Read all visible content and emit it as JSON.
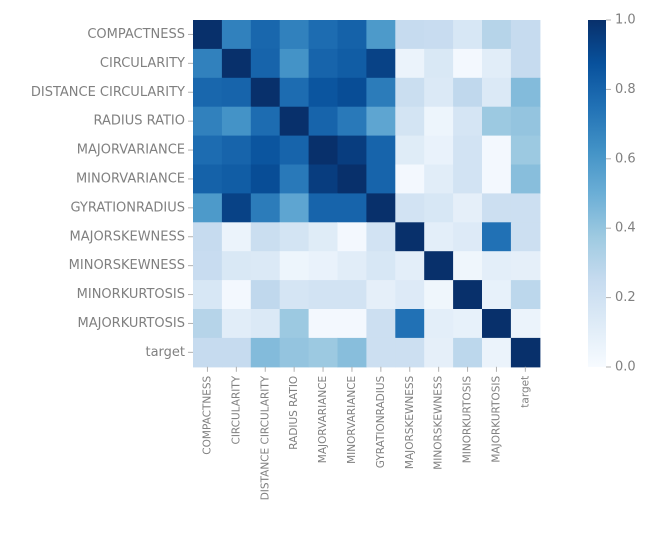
{
  "chart_data": {
    "type": "heatmap",
    "title": "",
    "xlabel": "",
    "ylabel": "",
    "rows": [
      "COMPACTNESS",
      "CIRCULARITY",
      "DISTANCE CIRCULARITY",
      "RADIUS RATIO",
      "MAJORVARIANCE",
      "MINORVARIANCE",
      "GYRATIONRADIUS",
      "MAJORSKEWNESS",
      "MINORSKEWNESS",
      "MINORKURTOSIS",
      "MAJORKURTOSIS",
      "target"
    ],
    "cols": [
      "COMPACTNESS",
      "CIRCULARITY",
      "DISTANCE CIRCULARITY",
      "RADIUS RATIO",
      "MAJORVARIANCE",
      "MINORVARIANCE",
      "GYRATIONRADIUS",
      "MAJORSKEWNESS",
      "MINORSKEWNESS",
      "MINORKURTOSIS",
      "MAJORKURTOSIS",
      "target"
    ],
    "values": [
      [
        1.0,
        0.69,
        0.79,
        0.69,
        0.77,
        0.81,
        0.59,
        0.25,
        0.24,
        0.16,
        0.3,
        0.25
      ],
      [
        0.69,
        1.0,
        0.8,
        0.62,
        0.8,
        0.83,
        0.93,
        0.06,
        0.15,
        0.02,
        0.11,
        0.25
      ],
      [
        0.79,
        0.8,
        1.0,
        0.77,
        0.86,
        0.89,
        0.71,
        0.23,
        0.14,
        0.27,
        0.14,
        0.44
      ],
      [
        0.69,
        0.62,
        0.77,
        1.0,
        0.8,
        0.72,
        0.54,
        0.18,
        0.05,
        0.17,
        0.38,
        0.4
      ],
      [
        0.77,
        0.8,
        0.86,
        0.8,
        1.0,
        0.95,
        0.8,
        0.12,
        0.07,
        0.19,
        0.02,
        0.38
      ],
      [
        0.81,
        0.83,
        0.89,
        0.72,
        0.95,
        1.0,
        0.8,
        0.02,
        0.11,
        0.19,
        0.02,
        0.43
      ],
      [
        0.59,
        0.93,
        0.71,
        0.54,
        0.8,
        0.8,
        1.0,
        0.19,
        0.16,
        0.09,
        0.22,
        0.22
      ],
      [
        0.25,
        0.06,
        0.23,
        0.18,
        0.12,
        0.02,
        0.19,
        1.0,
        0.1,
        0.13,
        0.75,
        0.22
      ],
      [
        0.24,
        0.15,
        0.14,
        0.05,
        0.07,
        0.11,
        0.16,
        0.1,
        1.0,
        0.04,
        0.1,
        0.09
      ],
      [
        0.16,
        0.02,
        0.27,
        0.17,
        0.19,
        0.19,
        0.09,
        0.13,
        0.04,
        1.0,
        0.08,
        0.28
      ],
      [
        0.3,
        0.11,
        0.14,
        0.38,
        0.02,
        0.02,
        0.22,
        0.75,
        0.1,
        0.08,
        1.0,
        0.06
      ],
      [
        0.25,
        0.25,
        0.44,
        0.4,
        0.38,
        0.43,
        0.22,
        0.22,
        0.09,
        0.28,
        0.06,
        1.0
      ]
    ],
    "colorbar": {
      "min": 0.0,
      "max": 1.0,
      "ticks": [
        "0.0",
        "0.2",
        "0.4",
        "0.6",
        "0.8",
        "1.0"
      ],
      "colormap": "Blues"
    },
    "grid": false
  }
}
